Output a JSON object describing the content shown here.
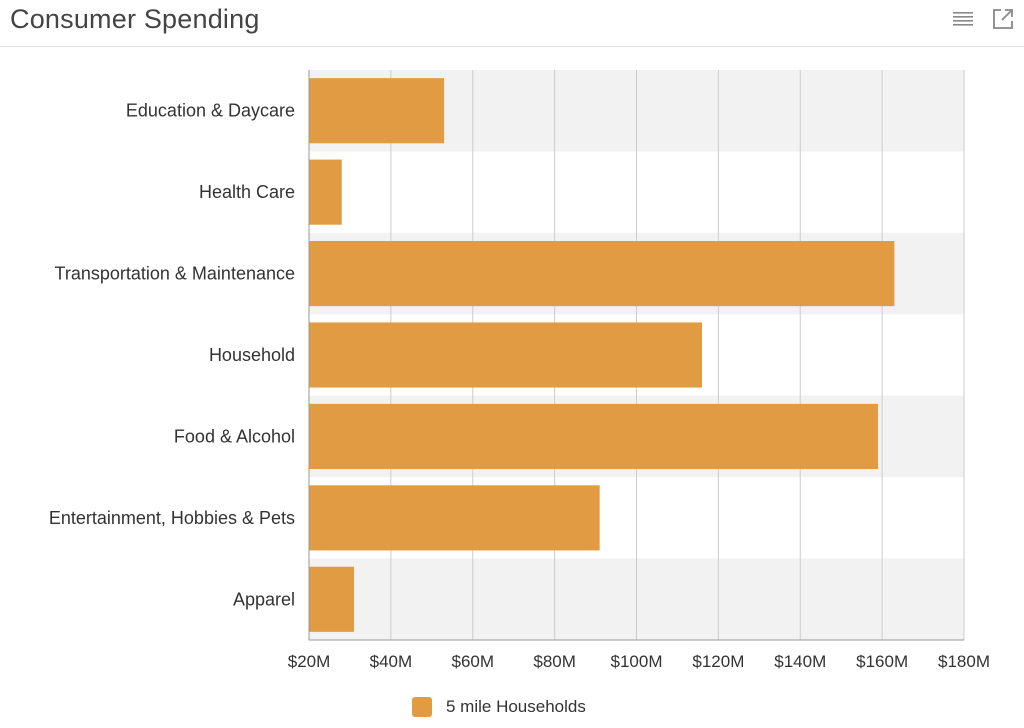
{
  "header": {
    "title": "Consumer Spending",
    "list_icon": "list-icon",
    "popout_icon": "external-link-icon"
  },
  "colors": {
    "bar": "#e19b43",
    "band": "#f2f2f2",
    "grid": "#cccccc",
    "axis": "#999999",
    "text": "#333333"
  },
  "chart_data": {
    "type": "bar",
    "orientation": "horizontal",
    "title": "Consumer Spending",
    "categories": [
      "Education & Daycare",
      "Health Care",
      "Transportation & Maintenance",
      "Household",
      "Food & Alcohol",
      "Entertainment, Hobbies & Pets",
      "Apparel"
    ],
    "series": [
      {
        "name": "5 mile Households",
        "values": [
          53,
          28,
          163,
          116,
          159,
          91,
          31
        ]
      }
    ],
    "xlim": [
      20,
      180
    ],
    "xticks": [
      20,
      40,
      60,
      80,
      100,
      120,
      140,
      160,
      180
    ],
    "xtick_labels": [
      "$20M",
      "$40M",
      "$60M",
      "$80M",
      "$100M",
      "$120M",
      "$140M",
      "$160M",
      "$180M"
    ],
    "unit": "millions USD",
    "grid": true,
    "legend_position": "bottom-center"
  }
}
